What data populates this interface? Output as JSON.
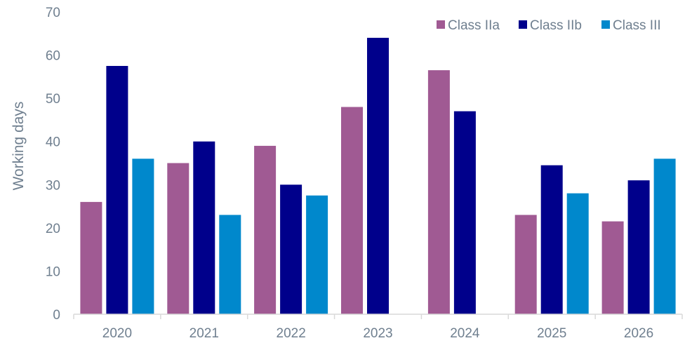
{
  "chart_data": {
    "type": "bar",
    "title": "",
    "xlabel": "",
    "ylabel": "Working days",
    "categories": [
      "2020",
      "2021",
      "2022",
      "2023",
      "2024",
      "2025",
      "2026"
    ],
    "ylim": [
      0,
      70
    ],
    "yticks": [
      0,
      10,
      20,
      30,
      40,
      50,
      60,
      70
    ],
    "grid": false,
    "legend_position": "top-right",
    "series": [
      {
        "name": "Class IIa",
        "color": "#a05a93",
        "values": [
          26,
          35,
          39,
          48,
          56.5,
          23,
          21.5
        ]
      },
      {
        "name": "Class IIb",
        "color": "#00008b",
        "values": [
          57.5,
          40,
          30,
          64,
          47,
          34.5,
          31
        ]
      },
      {
        "name": "Class III",
        "color": "#0088cc",
        "values": [
          36,
          23,
          27.5,
          null,
          null,
          28,
          36
        ]
      }
    ]
  }
}
